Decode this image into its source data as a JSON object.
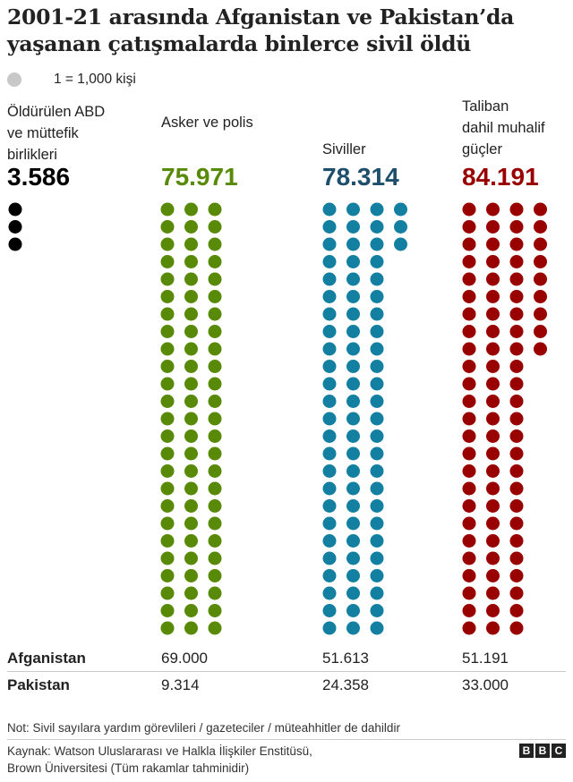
{
  "title": "2001-21 arasında Afganistan ve Pakistan’da yaşanan çatışmalarda binlerce sivil öldü",
  "legend": {
    "label": "1 = 1,000 kişi",
    "color": "#c8c8c8"
  },
  "chart_data": {
    "type": "waffle",
    "unit": 1000,
    "categories": [
      {
        "label": "Öldürülen ABD\nve müttefik\nbirlikleri",
        "total_label": "3.586",
        "value": 3586,
        "dots": 3,
        "color": "#000000",
        "columns": 1,
        "column_heights": [
          3
        ]
      },
      {
        "label": "Asker ve polis",
        "total_label": "75.971",
        "value": 75971,
        "dots": 75,
        "color": "#588a07",
        "columns": 3,
        "column_heights": [
          25,
          25,
          25
        ]
      },
      {
        "label": "Siviller",
        "total_label": "78.314",
        "value": 78314,
        "dots": 78,
        "color": "#1380a1",
        "columns": 4,
        "column_heights": [
          25,
          25,
          25,
          3
        ]
      },
      {
        "label": "Taliban\ndahil muhalif\ngüçler",
        "total_label": "84.191",
        "value": 84191,
        "dots": 84,
        "color": "#990000",
        "columns": 4,
        "column_heights": [
          25,
          25,
          25,
          9
        ]
      }
    ]
  },
  "table": {
    "rows": [
      {
        "label": "Afganistan",
        "values": [
          "",
          "69.000",
          "51.613",
          "51.191"
        ]
      },
      {
        "label": "Pakistan",
        "values": [
          "",
          "9.314",
          "24.358",
          "33.000"
        ]
      }
    ]
  },
  "footer": {
    "note": "Not: Sivil sayılara yardım görevlileri / gazeteciler / müteahhitler de dahildir",
    "source": "Kaynak: Watson Uluslararası ve Halkla İlişkiler Enstitüsü,\nBrown Üniversitesi (Tüm rakamlar tahminidir)",
    "logo_letters": [
      "B",
      "B",
      "C"
    ]
  }
}
